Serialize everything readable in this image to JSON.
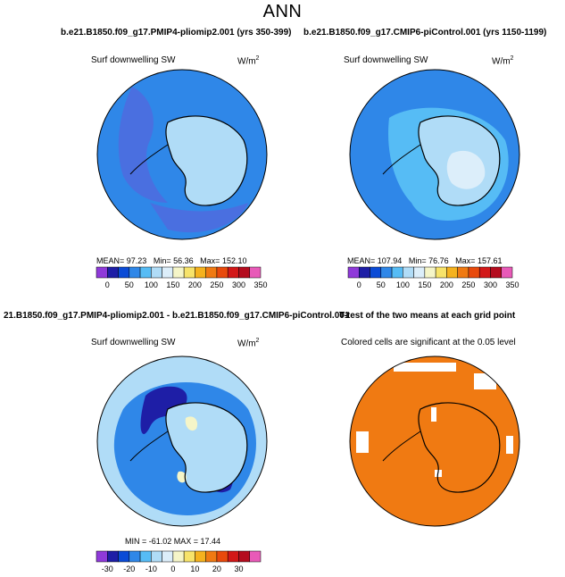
{
  "figure": {
    "title": "ANN",
    "top_left_case": "b.e21.B1850.f09_g17.PMIP4-pliomip2.001 (yrs 350-399)",
    "top_right_case": "b.e21.B1850.f09_g17.CMIP6-piControl.001 (yrs 1150-1199)",
    "diff_case": "21.B1850.f09_g17.PMIP4-pliomip2.001 - b.e21.B1850.f09_g17.CMIP6-piControl.001",
    "ttest_title": "T-test of the two means at each grid point"
  },
  "panels": {
    "top_left": {
      "variable": "Surf downwelling SW",
      "units": "W/m",
      "units_exp": "2",
      "mean_label": "MEAN=",
      "mean": "97.23",
      "min_label": "Min=",
      "min": "56.36",
      "max_label": "Max=",
      "max": "152.10"
    },
    "top_right": {
      "variable": "Surf downwelling SW",
      "units": "W/m",
      "units_exp": "2",
      "mean_label": "MEAN=",
      "mean": "107.94",
      "min_label": "Min=",
      "min": "76.76",
      "max_label": "Max=",
      "max": "157.61"
    },
    "bottom_left": {
      "variable": "Surf downwelling SW",
      "units": "W/m",
      "units_exp": "2",
      "stats": "MIN = -61.02  MAX =  17.44"
    },
    "bottom_right": {
      "label": "Colored cells are significant at the 0.05 level"
    }
  },
  "colorbars": {
    "absolute": {
      "ticks": [
        "0",
        "50",
        "100",
        "150",
        "200",
        "250",
        "300",
        "350"
      ],
      "colors": [
        "#8f3ad9",
        "#1e1ea6",
        "#0a4bd6",
        "#2f87e8",
        "#56bcf5",
        "#b0dcf7",
        "#dceefa",
        "#f5f5c8",
        "#f7e36a",
        "#f5b21e",
        "#f07a12",
        "#e84a0c",
        "#d21818",
        "#b40c1e",
        "#e85ab8"
      ]
    },
    "difference": {
      "ticks": [
        "-30",
        "-20",
        "-10",
        "0",
        "10",
        "20",
        "30"
      ],
      "colors": [
        "#8f3ad9",
        "#1e1ea6",
        "#0a4bd6",
        "#2f87e8",
        "#56bcf5",
        "#b0dcf7",
        "#dceefa",
        "#f5f5c8",
        "#f7e36a",
        "#f5b21e",
        "#f07a12",
        "#e84a0c",
        "#d21818",
        "#b40c1e",
        "#e85ab8"
      ]
    }
  },
  "map_colors": {
    "ocean_sw_mid": "#2f87e8",
    "ocean_sw_low": "#4a6fe0",
    "ice_sw": "#b0dcf7",
    "ice_sw_high": "#dceefa",
    "ring_sw": "#56bcf5",
    "diff_ocean": "#b0dcf7",
    "diff_neg": "#2f87e8",
    "diff_strong_neg": "#1e1ea6",
    "diff_pos": "#f5f5c8",
    "significant": "#f07a12",
    "coast": "#000000"
  }
}
